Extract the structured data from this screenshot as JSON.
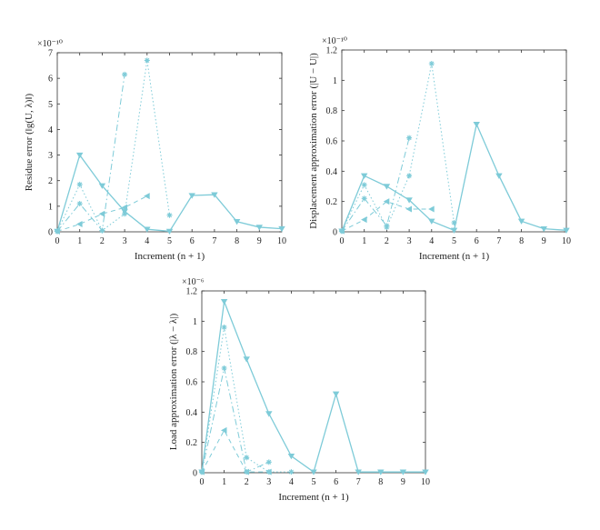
{
  "colors": {
    "series": "#7ecbd8",
    "axis": "#333333"
  },
  "chart_data": [
    {
      "type": "line",
      "title": "",
      "xlabel": "Increment (n + 1)",
      "ylabel": "Residue error (‖g(U, λ)‖)",
      "exponent": "×10⁻¹⁰",
      "xlim": [
        0,
        10
      ],
      "ylim": [
        0,
        7
      ],
      "xticks": [
        "0",
        "1",
        "2",
        "3",
        "4",
        "5",
        "6",
        "7",
        "8",
        "9",
        "10"
      ],
      "yticks": [
        "0",
        "1",
        "2",
        "3",
        "4",
        "5",
        "6",
        "7"
      ],
      "series": [
        {
          "style": "solid",
          "marker": "triangle-down",
          "x": [
            0,
            1,
            2,
            3,
            4,
            5,
            6,
            7,
            8,
            9,
            10
          ],
          "y": [
            0.02,
            3.0,
            1.8,
            0.8,
            0.1,
            0.02,
            1.42,
            1.45,
            0.4,
            0.18,
            0.12
          ]
        },
        {
          "style": "dotted",
          "marker": "star",
          "x": [
            0,
            1,
            2,
            3,
            4,
            5
          ],
          "y": [
            0.02,
            1.85,
            0.05,
            0.7,
            6.7,
            0.65
          ]
        },
        {
          "style": "dashdot",
          "marker": "star",
          "x": [
            0,
            1,
            2,
            3
          ],
          "y": [
            0.02,
            1.1,
            0.05,
            6.15
          ]
        },
        {
          "style": "dashed",
          "marker": "triangle-left",
          "x": [
            0,
            1,
            2,
            3,
            4
          ],
          "y": [
            0.02,
            0.3,
            0.7,
            0.95,
            1.4
          ]
        }
      ]
    },
    {
      "type": "line",
      "title": "",
      "xlabel": "Increment (n + 1)",
      "ylabel": "Displacement approximation error (|U − U|)",
      "exponent": "×10⁻¹⁰",
      "xlim": [
        0,
        10
      ],
      "ylim": [
        0,
        1.2
      ],
      "xticks": [
        "0",
        "1",
        "2",
        "3",
        "4",
        "5",
        "6",
        "7",
        "8",
        "9",
        "10"
      ],
      "yticks": [
        "0",
        "0.2",
        "0.4",
        "0.6",
        "0.8",
        "1",
        "1.2"
      ],
      "series": [
        {
          "style": "solid",
          "marker": "triangle-down",
          "x": [
            0,
            1,
            2,
            3,
            4,
            5,
            6,
            7,
            8,
            9,
            10
          ],
          "y": [
            0.005,
            0.37,
            0.3,
            0.21,
            0.07,
            0.01,
            0.71,
            0.37,
            0.07,
            0.02,
            0.01
          ]
        },
        {
          "style": "dotted",
          "marker": "star",
          "x": [
            0,
            1,
            2,
            3,
            4,
            5
          ],
          "y": [
            0.005,
            0.31,
            0.03,
            0.37,
            1.11,
            0.06
          ]
        },
        {
          "style": "dashdot",
          "marker": "star",
          "x": [
            0,
            1,
            2,
            3
          ],
          "y": [
            0.005,
            0.22,
            0.04,
            0.62
          ]
        },
        {
          "style": "dashed",
          "marker": "triangle-left",
          "x": [
            0,
            1,
            2,
            3,
            4
          ],
          "y": [
            0.005,
            0.08,
            0.2,
            0.15,
            0.15
          ]
        }
      ]
    },
    {
      "type": "line",
      "title": "",
      "xlabel": "Increment (n + 1)",
      "ylabel": "Load approximation error (|λ − λ|)",
      "exponent": "×10⁻⁶",
      "xlim": [
        0,
        10
      ],
      "ylim": [
        0,
        1.2
      ],
      "xticks": [
        "0",
        "1",
        "2",
        "3",
        "4",
        "5",
        "6",
        "7",
        "8",
        "9",
        "10"
      ],
      "yticks": [
        "0",
        "0.2",
        "0.4",
        "0.6",
        "0.8",
        "1",
        "1.2"
      ],
      "series": [
        {
          "style": "solid",
          "marker": "triangle-down",
          "x": [
            0,
            1,
            2,
            3,
            4,
            5,
            6,
            7,
            8,
            9,
            10
          ],
          "y": [
            0.005,
            1.13,
            0.75,
            0.39,
            0.11,
            0.005,
            0.52,
            0.005,
            0.005,
            0.005,
            0.005
          ]
        },
        {
          "style": "dotted",
          "marker": "star",
          "x": [
            0,
            1,
            2,
            3,
            4
          ],
          "y": [
            0.005,
            0.96,
            0.1,
            0.005,
            0.005
          ]
        },
        {
          "style": "dashdot",
          "marker": "star",
          "x": [
            0,
            1,
            2,
            3
          ],
          "y": [
            0.005,
            0.69,
            0.005,
            0.07
          ]
        },
        {
          "style": "dashed",
          "marker": "triangle-left",
          "x": [
            0,
            1,
            2,
            3
          ],
          "y": [
            0.005,
            0.28,
            0.005,
            0.005
          ]
        }
      ]
    }
  ]
}
